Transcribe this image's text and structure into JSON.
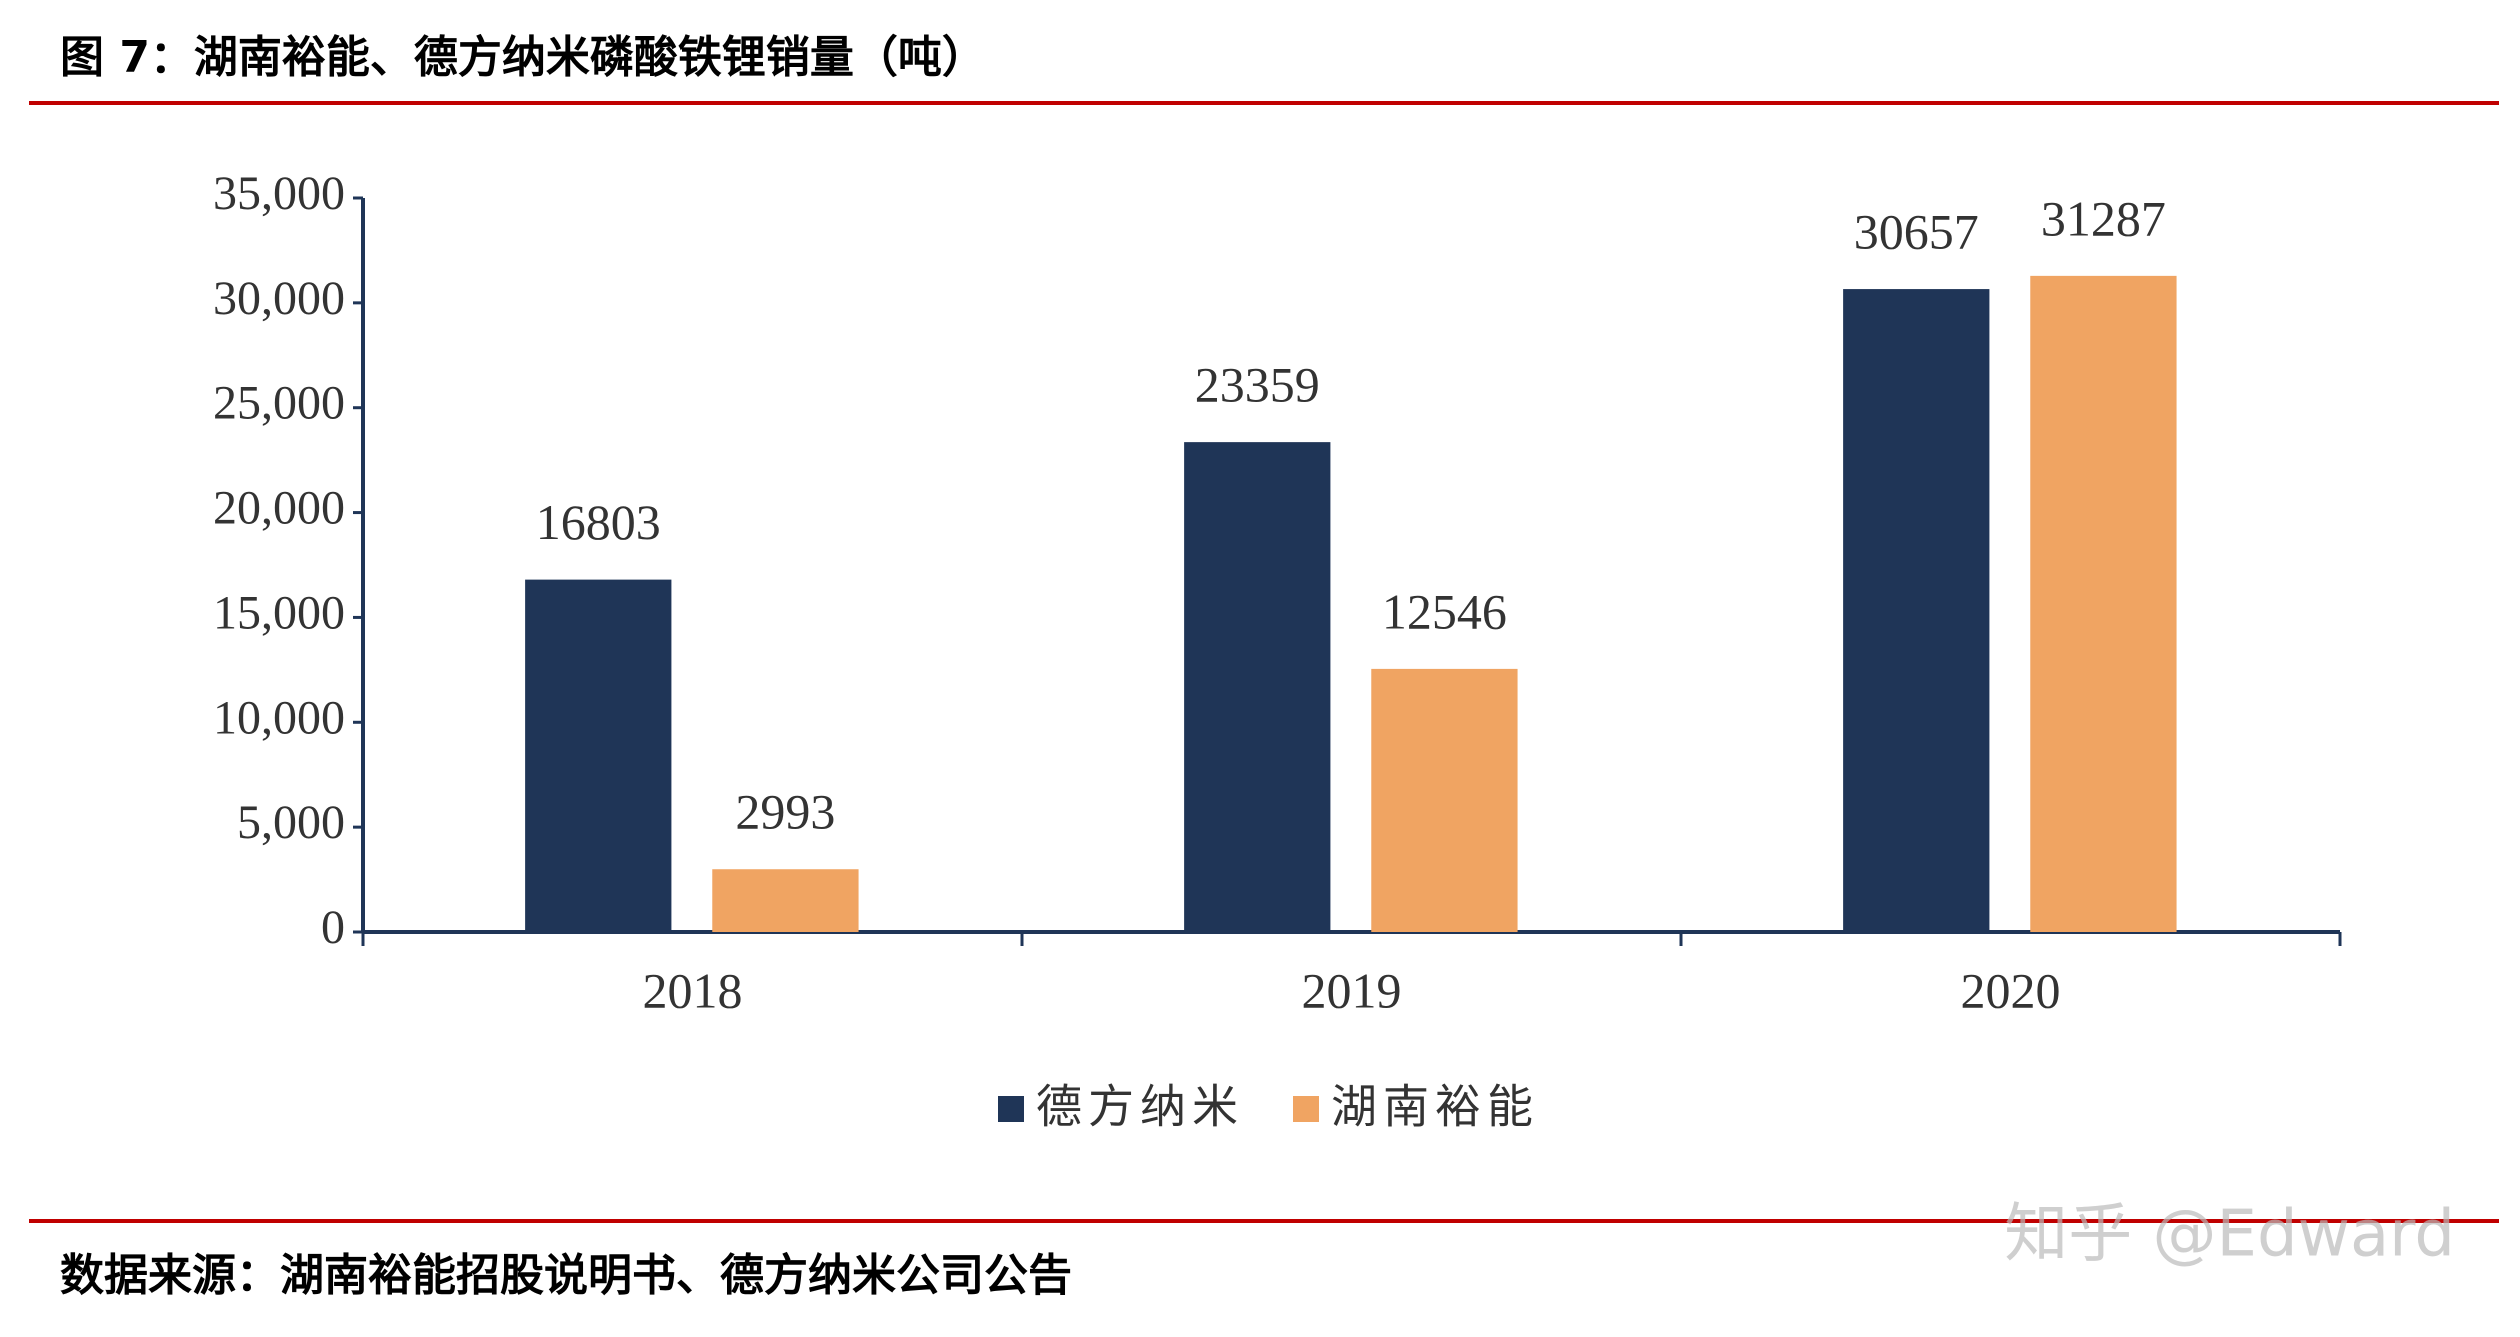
{
  "header": {
    "title": "图 7：湖南裕能、德方纳米磷酸铁锂销量（吨）"
  },
  "chart_data": {
    "type": "bar",
    "categories": [
      "2018",
      "2019",
      "2020"
    ],
    "series": [
      {
        "name": "德方纳米",
        "color": "#1f3557",
        "values": [
          16803,
          23359,
          30657
        ]
      },
      {
        "name": "湖南裕能",
        "color": "#f0a462",
        "values": [
          2993,
          12546,
          31287
        ]
      }
    ],
    "ylim": [
      0,
      35000
    ],
    "yticks": [
      0,
      {
        "value": 5000,
        "label": "5,000"
      },
      {
        "value": 10000,
        "label": "10,000"
      },
      {
        "value": 15000,
        "label": "15,000"
      },
      {
        "value": 20000,
        "label": "20,000"
      },
      {
        "value": 25000,
        "label": "25,000"
      },
      {
        "value": 30000,
        "label": "30,000"
      },
      {
        "value": 35000,
        "label": "35,000"
      }
    ],
    "grid": false,
    "legend": "bottom"
  },
  "footer": {
    "source": "数据来源：湖南裕能招股说明书、德方纳米公司公告",
    "watermark": "知乎 @Edward"
  }
}
